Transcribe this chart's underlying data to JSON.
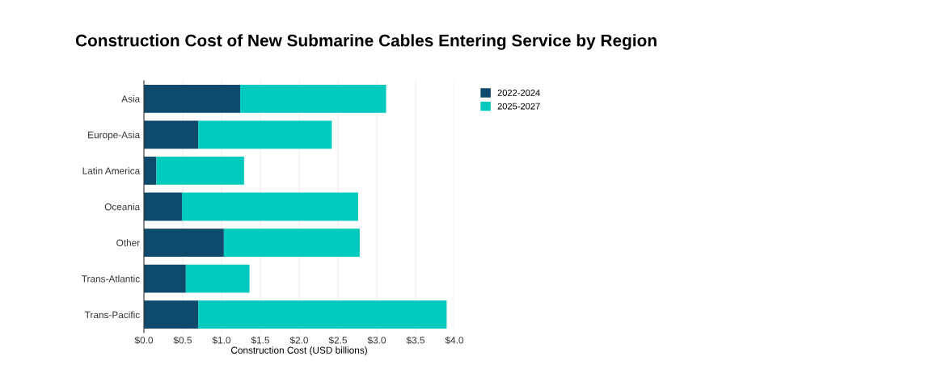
{
  "chart_data": {
    "type": "bar",
    "orientation": "horizontal",
    "stacked": true,
    "title": "Construction Cost of New Submarine Cables Entering Service by Region",
    "xlabel": "Construction Cost (USD billions)",
    "categories": [
      "Asia",
      "Europe-Asia",
      "Latin America",
      "Oceania",
      "Other",
      "Trans-Atlantic",
      "Trans-Pacific"
    ],
    "series": [
      {
        "name": "2022-2024",
        "color": "#0d4a6b",
        "values": [
          1.24,
          0.7,
          0.16,
          0.49,
          1.03,
          0.54,
          0.7
        ]
      },
      {
        "name": "2025-2027",
        "color": "#00c9bd",
        "values": [
          1.88,
          1.72,
          1.13,
          2.27,
          1.75,
          0.82,
          3.2
        ]
      }
    ],
    "xlim": [
      0,
      4
    ],
    "xticks": [
      {
        "value": 0,
        "label": "$0.0"
      },
      {
        "value": 0.5,
        "label": "$0.5"
      },
      {
        "value": 1,
        "label": "$1.0"
      },
      {
        "value": 1.5,
        "label": "$1.5"
      },
      {
        "value": 2,
        "label": "$2.0"
      },
      {
        "value": 2.5,
        "label": "$2.5"
      },
      {
        "value": 3,
        "label": "$3.0"
      },
      {
        "value": 3.5,
        "label": "$3.5"
      },
      {
        "value": 4,
        "label": "$4.0"
      }
    ],
    "grid": "x",
    "legend": "top right"
  }
}
